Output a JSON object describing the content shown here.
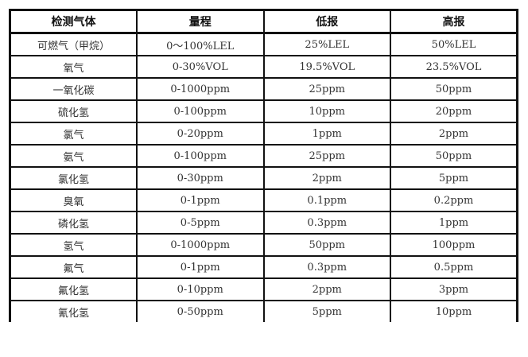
{
  "table": {
    "headers": [
      "检测气体",
      "量程",
      "低报",
      "高报"
    ],
    "rows": [
      [
        "可燃气（甲烷）",
        "0～100%LEL",
        "25%LEL",
        "50%LEL"
      ],
      [
        "氧气",
        "0-30%VOL",
        "19.5%VOL",
        "23.5%VOL"
      ],
      [
        "一氧化碳",
        "0-1000ppm",
        "25ppm",
        "50ppm"
      ],
      [
        "硫化氢",
        "0-100ppm",
        "10ppm",
        "20ppm"
      ],
      [
        "氯气",
        "0-20ppm",
        "1ppm",
        "2ppm"
      ],
      [
        "氨气",
        "0-100ppm",
        "25ppm",
        "50ppm"
      ],
      [
        "氯化氢",
        "0-30ppm",
        "2ppm",
        "5ppm"
      ],
      [
        "臭氧",
        "0-1ppm",
        "0.1ppm",
        "0.2ppm"
      ],
      [
        "磷化氢",
        "0-5ppm",
        "0.3ppm",
        "1ppm"
      ],
      [
        "氢气",
        "0-1000ppm",
        "50ppm",
        "100ppm"
      ],
      [
        "氟气",
        "0-1ppm",
        "0.3ppm",
        "0.5ppm"
      ],
      [
        "氟化氢",
        "0-10ppm",
        "2ppm",
        "3ppm"
      ],
      [
        "氰化氢",
        "0-50ppm",
        "5ppm",
        "10ppm"
      ]
    ]
  }
}
